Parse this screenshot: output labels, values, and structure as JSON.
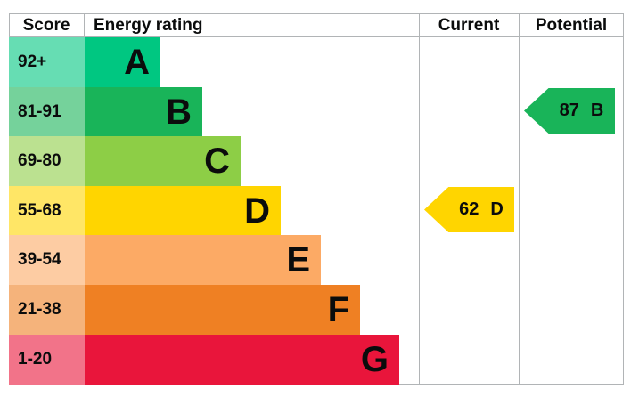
{
  "header": {
    "score": "Score",
    "energy_rating": "Energy rating",
    "current": "Current",
    "potential": "Potential"
  },
  "bands": [
    {
      "letter": "A",
      "score_range": "92+",
      "color": "#00c781",
      "tint_color": "#66ddb3"
    },
    {
      "letter": "B",
      "score_range": "81-91",
      "color": "#19b459",
      "tint_color": "#75d29b"
    },
    {
      "letter": "C",
      "score_range": "69-80",
      "color": "#8dce46",
      "tint_color": "#bbe190"
    },
    {
      "letter": "D",
      "score_range": "55-68",
      "color": "#ffd500",
      "tint_color": "#ffe666"
    },
    {
      "letter": "E",
      "score_range": "39-54",
      "color": "#fcaa65",
      "tint_color": "#fdcca3"
    },
    {
      "letter": "F",
      "score_range": "21-38",
      "color": "#ef8023",
      "tint_color": "#f5b37b"
    },
    {
      "letter": "G",
      "score_range": "1-20",
      "color": "#e9153b",
      "tint_color": "#f27389"
    }
  ],
  "current": {
    "value": "62",
    "letter": "D",
    "band_index": 3,
    "color": "#ffd500"
  },
  "potential": {
    "value": "87",
    "letter": "B",
    "band_index": 1,
    "color": "#19b459"
  },
  "border_color": "#b1b4b6",
  "chart_data": {
    "type": "bar",
    "title": "Energy rating",
    "columns": [
      "Score",
      "Energy rating",
      "Current",
      "Potential"
    ],
    "categories": [
      "A",
      "B",
      "C",
      "D",
      "E",
      "F",
      "G"
    ],
    "score_ranges": [
      "92+",
      "81-91",
      "69-80",
      "55-68",
      "39-54",
      "21-38",
      "1-20"
    ],
    "band_colors": [
      "#00c781",
      "#19b459",
      "#8dce46",
      "#ffd500",
      "#fcaa65",
      "#ef8023",
      "#e9153b"
    ],
    "current": {
      "value": 62,
      "band": "D"
    },
    "potential": {
      "value": 87,
      "band": "B"
    },
    "legend_position": "none",
    "grid": false
  }
}
